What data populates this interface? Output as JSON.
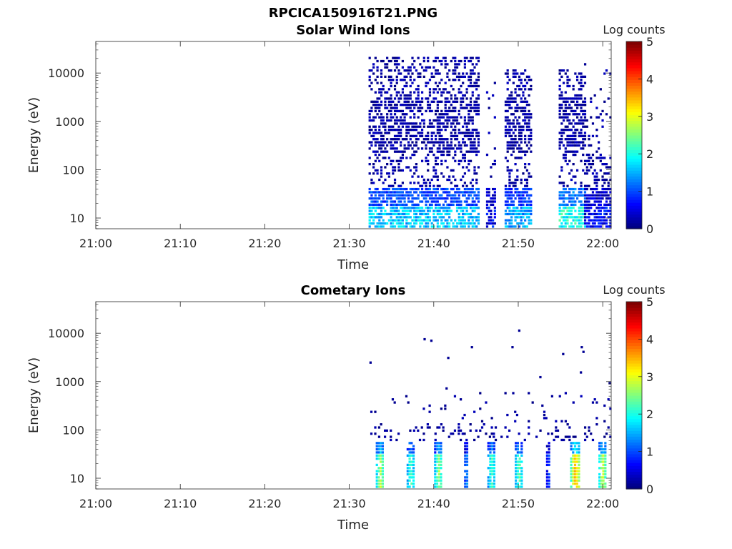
{
  "figure": {
    "title": "RPCICA150916T21.PNG"
  },
  "chart_data": [
    {
      "type": "heatmap",
      "title": "Solar Wind Ions",
      "xlabel": "Time",
      "ylabel": "Energy (eV)",
      "x_ticks": [
        "21:00",
        "21:10",
        "21:20",
        "21:30",
        "21:40",
        "21:50",
        "22:00"
      ],
      "xlim": [
        "21:00",
        "22:01"
      ],
      "y_scale": "log",
      "y_ticks": [
        10,
        100,
        1000,
        10000
      ],
      "ylim": [
        6,
        45000
      ],
      "colorbar": {
        "label": "Log counts",
        "ticks": [
          0,
          1,
          2,
          3,
          4,
          5
        ],
        "range": [
          0,
          5
        ],
        "colormap": "jet"
      },
      "segments": [
        {
          "start": 32.3,
          "end": 45.3,
          "density": 0.55,
          "high_density": 0.3,
          "max_energy": 20000,
          "low_level": 1.2
        },
        {
          "start": 46.2,
          "end": 47.2,
          "density": 0.06,
          "high_density": 0.08,
          "max_energy": 12000,
          "low_level": 0.2
        },
        {
          "start": 48.4,
          "end": 51.6,
          "density": 0.6,
          "high_density": 0.25,
          "max_energy": 12000,
          "low_level": 1.0
        },
        {
          "start": 54.8,
          "end": 57.8,
          "density": 0.6,
          "high_density": 0.25,
          "max_energy": 12000,
          "low_level": 1.6
        },
        {
          "start": 57.8,
          "end": 60.9,
          "density": 0.1,
          "high_density": 0.4,
          "max_energy": 15000,
          "low_level": 0.2
        }
      ]
    },
    {
      "type": "heatmap",
      "title": "Cometary Ions",
      "xlabel": "Time",
      "ylabel": "Energy (eV)",
      "x_ticks": [
        "21:00",
        "21:10",
        "21:20",
        "21:30",
        "21:40",
        "21:50",
        "22:00"
      ],
      "xlim": [
        "21:00",
        "22:01"
      ],
      "y_scale": "log",
      "y_ticks": [
        10,
        100,
        1000,
        10000
      ],
      "ylim": [
        6,
        45000
      ],
      "colorbar": {
        "label": "Log counts",
        "ticks": [
          0,
          1,
          2,
          3,
          4,
          5
        ],
        "range": [
          0,
          5
        ],
        "colormap": "jet"
      },
      "bursts": [
        {
          "time": 33.6,
          "width": 0.9,
          "peak": 2.8
        },
        {
          "time": 37.2,
          "width": 0.8,
          "peak": 2.3
        },
        {
          "time": 40.5,
          "width": 0.9,
          "peak": 2.6
        },
        {
          "time": 43.8,
          "width": 0.4,
          "peak": 1.3
        },
        {
          "time": 46.8,
          "width": 0.9,
          "peak": 2.2
        },
        {
          "time": 50.0,
          "width": 0.8,
          "peak": 2.4
        },
        {
          "time": 53.5,
          "width": 0.4,
          "peak": 0.9
        },
        {
          "time": 56.7,
          "width": 1.1,
          "peak": 3.6
        },
        {
          "time": 59.9,
          "width": 0.8,
          "peak": 3.0
        }
      ],
      "scatter_start": 32.5,
      "scatter_end": 61.0,
      "isolated_points": [
        {
          "time": 32.4,
          "energy": 2400
        },
        {
          "time": 38.8,
          "energy": 7300
        },
        {
          "time": 39.6,
          "energy": 6800
        },
        {
          "time": 41.6,
          "energy": 3000
        },
        {
          "time": 44.4,
          "energy": 5000
        },
        {
          "time": 49.2,
          "energy": 5000
        },
        {
          "time": 50.0,
          "energy": 11000
        },
        {
          "time": 55.2,
          "energy": 3600
        },
        {
          "time": 57.4,
          "energy": 5000
        },
        {
          "time": 57.6,
          "energy": 4000
        },
        {
          "time": 57.3,
          "energy": 1500
        },
        {
          "time": 52.5,
          "energy": 1200
        },
        {
          "time": 41.4,
          "energy": 700
        },
        {
          "time": 60.7,
          "energy": 900
        }
      ]
    }
  ]
}
